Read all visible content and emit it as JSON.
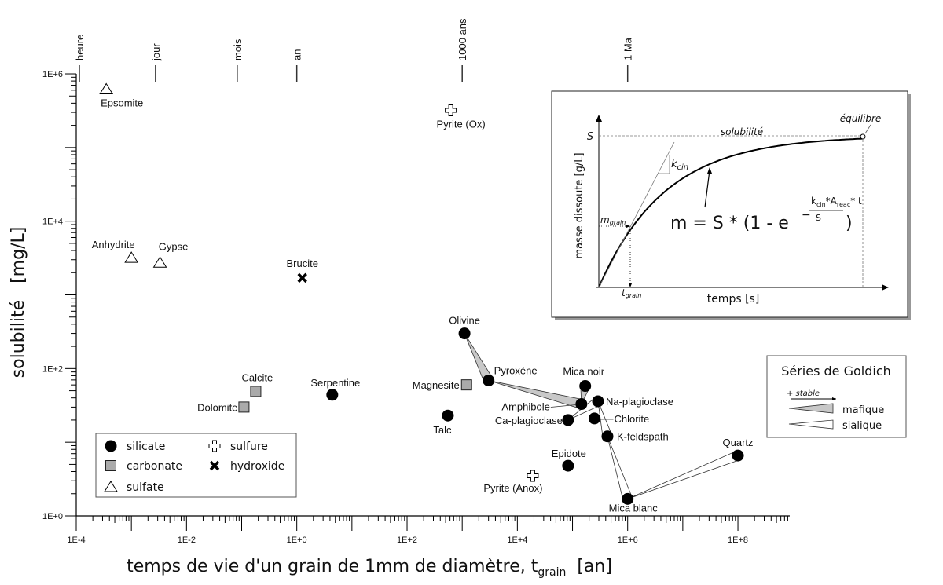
{
  "chart_data": {
    "type": "scatter",
    "x_scale": "log",
    "y_scale": "log",
    "xlim": [
      0.0001,
      870000000
    ],
    "ylim": [
      1,
      1000000
    ],
    "grid": false,
    "xlabel": "temps de vie d'un grain de 1mm de diamètre, t",
    "xlabel_sub": "grain",
    "xlabel_unit": "[an]",
    "ylabel": "solubilité   [mg/L]",
    "x_tick_labels": [
      {
        "value": 0.0001,
        "label": "1E-4"
      },
      {
        "value": 0.01,
        "label": "1E-2"
      },
      {
        "value": 1,
        "label": "1E+0"
      },
      {
        "value": 100,
        "label": "1E+2"
      },
      {
        "value": 10000,
        "label": "1E+4"
      },
      {
        "value": 1000000,
        "label": "1E+6"
      },
      {
        "value": 100000000,
        "label": "1E+8"
      }
    ],
    "y_tick_labels": [
      {
        "value": 1,
        "label": "1E+0"
      },
      {
        "value": 100,
        "label": "1E+2"
      },
      {
        "value": 10000,
        "label": "1E+4"
      },
      {
        "value": 1000000,
        "label": "1E+6"
      }
    ],
    "time_markers": [
      {
        "label": "heure",
        "value": 0.000114
      },
      {
        "label": "jour",
        "value": 0.00274
      },
      {
        "label": "mois",
        "value": 0.083
      },
      {
        "label": "an",
        "value": 1
      },
      {
        "label": "1000 ans",
        "value": 1000
      },
      {
        "label": "1 Ma",
        "value": 1000000
      }
    ],
    "categories": [
      {
        "key": "silicate",
        "label": "silicate",
        "marker": "filled-circle",
        "color": "#000000"
      },
      {
        "key": "carbonate",
        "label": "carbonate",
        "marker": "square",
        "color": "#aaaaaa"
      },
      {
        "key": "sulfate",
        "label": "sulfate",
        "marker": "open-triangle",
        "color": "#ffffff"
      },
      {
        "key": "sulfure",
        "label": "sulfure",
        "marker": "open-plus",
        "color": "#ffffff"
      },
      {
        "key": "hydroxide",
        "label": "hydroxide",
        "marker": "bold-x",
        "color": "#000000"
      }
    ],
    "points": [
      {
        "name": "Epsomite",
        "category": "sulfate",
        "x": 0.00035,
        "y": 620000
      },
      {
        "name": "Pyrite (Ox)",
        "category": "sulfure",
        "x": 620,
        "y": 320000
      },
      {
        "name": "Anhydrite",
        "category": "sulfate",
        "x": 0.001,
        "y": 3200
      },
      {
        "name": "Gypse",
        "category": "sulfate",
        "x": 0.0033,
        "y": 2750
      },
      {
        "name": "Brucite",
        "category": "hydroxide",
        "x": 1.26,
        "y": 1700
      },
      {
        "name": "Olivine",
        "category": "silicate",
        "x": 1100,
        "y": 300
      },
      {
        "name": "Pyroxène",
        "category": "silicate",
        "x": 3000,
        "y": 69
      },
      {
        "name": "Calcite",
        "category": "carbonate",
        "x": 0.18,
        "y": 49
      },
      {
        "name": "Dolomite",
        "category": "carbonate",
        "x": 0.11,
        "y": 30
      },
      {
        "name": "Serpentine",
        "category": "silicate",
        "x": 4.4,
        "y": 44
      },
      {
        "name": "Magnesite",
        "category": "carbonate",
        "x": 1200,
        "y": 60
      },
      {
        "name": "Talc",
        "category": "silicate",
        "x": 550,
        "y": 23
      },
      {
        "name": "Mica noir",
        "category": "silicate",
        "x": 170000,
        "y": 58
      },
      {
        "name": "Amphibole",
        "category": "silicate",
        "x": 145000,
        "y": 33
      },
      {
        "name": "Na-plagioclase",
        "category": "silicate",
        "x": 290000,
        "y": 36
      },
      {
        "name": "Chlorite",
        "category": "silicate",
        "x": 250000,
        "y": 21
      },
      {
        "name": "Ca-plagioclase",
        "category": "silicate",
        "x": 83000,
        "y": 20
      },
      {
        "name": "K-feldspath",
        "category": "silicate",
        "x": 430000,
        "y": 12
      },
      {
        "name": "Epidote",
        "category": "silicate",
        "x": 83000,
        "y": 4.8
      },
      {
        "name": "Pyrite (Anox)",
        "category": "sulfure",
        "x": 19000,
        "y": 3.5
      },
      {
        "name": "Mica blanc",
        "category": "silicate",
        "x": 1000000,
        "y": 1.7
      },
      {
        "name": "Quartz",
        "category": "silicate",
        "x": 100000000,
        "y": 6.6
      }
    ],
    "goldich_series": {
      "title": "Séries de Goldich",
      "direction_label": "+ stable",
      "mafique": {
        "label": "mafique",
        "color": "#c8c8c8",
        "sequence": [
          "Olivine",
          "Pyroxène",
          "Amphibole",
          "Mica noir"
        ]
      },
      "sialique": {
        "label": "sialique",
        "color": "#ffffff",
        "sequence": [
          "Ca-plagioclase",
          "Na-plagioclase",
          "K-feldspath",
          "Mica blanc",
          "Quartz"
        ]
      }
    },
    "legend_placement": "bottom-left",
    "inset": {
      "y_label": "masse dissoute [g/L]",
      "x_label": "temps [s]",
      "s_label": "S",
      "solubility_label": "solubilité",
      "equilibrium_label": "équilibre",
      "kcin_label": "k",
      "kcin_sub": "cin",
      "mgrain_label": "m",
      "mgrain_sub": "grain",
      "tgrain_label": "t",
      "tgrain_sub": "grain",
      "formula_main": "m = S * (1 - e",
      "formula_minus": "−",
      "formula_num_k": "k",
      "formula_num_k_sub": "cin",
      "formula_num_a": "*A",
      "formula_num_a_sub": "reac",
      "formula_num_t": "* t",
      "formula_den": "S",
      "formula_close": ")"
    }
  }
}
